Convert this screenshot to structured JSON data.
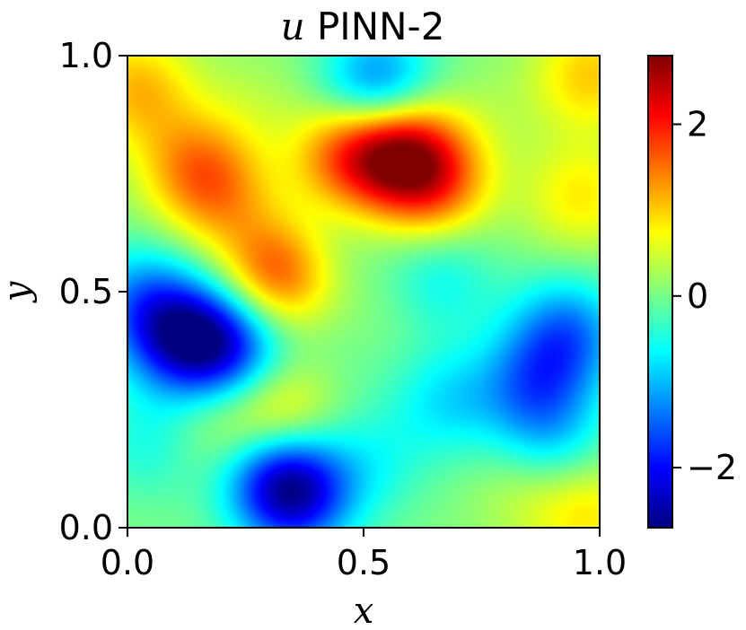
{
  "chart_data": {
    "type": "heatmap",
    "title_var": "u",
    "title_rest": "PINN-2",
    "xlabel": "x",
    "ylabel": "y",
    "xlim": [
      0.0,
      1.0
    ],
    "ylim": [
      0.0,
      1.0
    ],
    "xticks": [
      {
        "value": 0.0,
        "label": "0.0"
      },
      {
        "value": 0.5,
        "label": "0.5"
      },
      {
        "value": 1.0,
        "label": "1.0"
      }
    ],
    "yticks": [
      {
        "value": 0.0,
        "label": "0.0"
      },
      {
        "value": 0.5,
        "label": "0.5"
      },
      {
        "value": 1.0,
        "label": "1.0"
      }
    ],
    "colormap": "jet",
    "colorbar": {
      "vmin": -2.7,
      "vmax": 2.8,
      "ticks": [
        {
          "value": -2,
          "label": "−2"
        },
        {
          "value": 0,
          "label": "0"
        },
        {
          "value": 2,
          "label": "2"
        }
      ]
    },
    "field_features": [
      {
        "x": 0.58,
        "y": 0.8,
        "value": 2.3
      },
      {
        "x": 0.65,
        "y": 0.73,
        "value": 1.6
      },
      {
        "x": 0.47,
        "y": 0.79,
        "value": 1.7
      },
      {
        "x": 0.14,
        "y": 0.77,
        "value": 1.2
      },
      {
        "x": 0.2,
        "y": 0.7,
        "value": 1.0
      },
      {
        "x": 0.32,
        "y": 0.54,
        "value": 2.0
      },
      {
        "x": 0.02,
        "y": 0.93,
        "value": 1.2
      },
      {
        "x": 0.98,
        "y": 0.96,
        "value": 1.1
      },
      {
        "x": 0.96,
        "y": 0.7,
        "value": 0.9
      },
      {
        "x": 0.32,
        "y": 0.24,
        "value": 1.2
      },
      {
        "x": 0.18,
        "y": 0.22,
        "value": 0.5
      },
      {
        "x": 0.55,
        "y": 0.47,
        "value": 0.2
      },
      {
        "x": 0.85,
        "y": 0.08,
        "value": 0.5
      },
      {
        "x": 0.98,
        "y": 0.03,
        "value": 0.9
      },
      {
        "x": 0.12,
        "y": 0.4,
        "value": -2.2
      },
      {
        "x": 0.22,
        "y": 0.38,
        "value": -1.7
      },
      {
        "x": 0.03,
        "y": 0.48,
        "value": -1.2
      },
      {
        "x": 0.36,
        "y": 0.07,
        "value": -2.0
      },
      {
        "x": 0.31,
        "y": 0.11,
        "value": -1.3
      },
      {
        "x": 0.53,
        "y": 0.93,
        "value": -1.8
      },
      {
        "x": 0.93,
        "y": 0.41,
        "value": -1.5
      },
      {
        "x": 0.86,
        "y": 0.3,
        "value": -1.2
      },
      {
        "x": 0.9,
        "y": 0.18,
        "value": -0.8
      },
      {
        "x": 0.68,
        "y": 0.27,
        "value": -0.8
      },
      {
        "x": 0.66,
        "y": 0.53,
        "value": -0.7
      },
      {
        "x": 0.52,
        "y": 0.14,
        "value": -0.5
      },
      {
        "x": 0.05,
        "y": 0.18,
        "value": -0.6
      },
      {
        "x": 0.4,
        "y": 0.58,
        "value": -0.3
      },
      {
        "x": 0.27,
        "y": 0.9,
        "value": 0.3
      },
      {
        "x": 0.78,
        "y": 0.88,
        "value": 0.2
      },
      {
        "x": 0.45,
        "y": 0.36,
        "value": -0.1
      }
    ]
  }
}
